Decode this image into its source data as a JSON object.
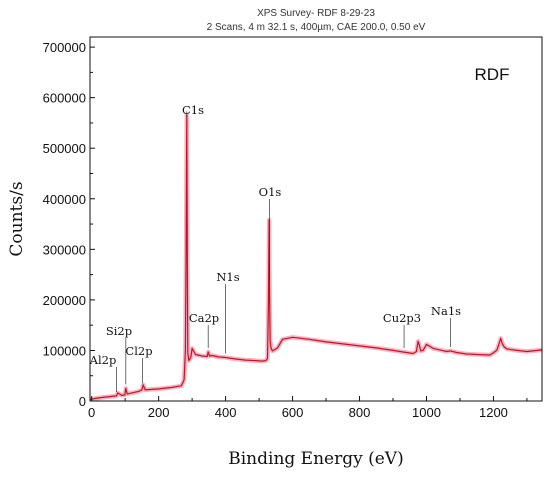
{
  "header": {
    "line1": "XPS Survey- RDF 8-29-23",
    "line2": "2 Scans,  4 m 32.1 s,  400µm,  CAE 200.0,  0.50 eV"
  },
  "chart_data": {
    "type": "line",
    "title": "",
    "sample_label": "RDF",
    "xlabel": "Binding Energy (eV)",
    "ylabel": "Counts/s",
    "xlim": [
      -5,
      1345
    ],
    "ylim": [
      0,
      720000
    ],
    "x_ticks": [
      0,
      200,
      400,
      600,
      800,
      1000,
      1200
    ],
    "y_ticks": [
      0,
      100000,
      200000,
      300000,
      400000,
      500000,
      600000,
      700000
    ],
    "grid": false,
    "legend": "none",
    "line_color": "#c0161b",
    "envelope_color": "#f6b4c8",
    "series": [
      {
        "values_x": [
          -5,
          10,
          30,
          60,
          74,
          78,
          90,
          99,
          102,
          106,
          120,
          140,
          150,
          154,
          160,
          200,
          240,
          268,
          276,
          280,
          282,
          284,
          286,
          287,
          290,
          296,
          300,
          310,
          330,
          345,
          348,
          352,
          360,
          380,
          400,
          430,
          460,
          490,
          510,
          520,
          525,
          528,
          530,
          531,
          533,
          536,
          540,
          555,
          570,
          600,
          650,
          700,
          750,
          800,
          850,
          900,
          930,
          960,
          970,
          975,
          978,
          983,
          990,
          1000,
          1010,
          1020,
          1040,
          1060,
          1072,
          1090,
          1120,
          1150,
          1190,
          1210,
          1218,
          1222,
          1226,
          1232,
          1240,
          1270,
          1300,
          1345
        ],
        "values_y": [
          3000,
          5000,
          7000,
          9000,
          10000,
          16000,
          11000,
          12000,
          25000,
          14000,
          16000,
          19000,
          22000,
          32000,
          22000,
          24000,
          27000,
          30000,
          42000,
          100000,
          300000,
          565000,
          250000,
          95000,
          80000,
          86000,
          104000,
          92000,
          89000,
          88000,
          97000,
          89000,
          90000,
          87000,
          86000,
          83000,
          81000,
          80000,
          79000,
          80000,
          84000,
          200000,
          358000,
          230000,
          120000,
          104000,
          99000,
          105000,
          122000,
          126000,
          122000,
          117000,
          113000,
          109000,
          105000,
          100000,
          97000,
          94000,
          98000,
          118000,
          112000,
          99000,
          100000,
          112000,
          108000,
          104000,
          101000,
          98000,
          99000,
          96000,
          93000,
          92000,
          91000,
          100000,
          116000,
          124000,
          114000,
          107000,
          103000,
          100000,
          98000,
          101000
        ]
      }
    ],
    "annotations": [
      {
        "text": "Al2p",
        "x": 74
      },
      {
        "text": "Si2p",
        "x": 102
      },
      {
        "text": "Cl2p",
        "x": 152
      },
      {
        "text": "C1s",
        "x": 284
      },
      {
        "text": "Ca2p",
        "x": 348
      },
      {
        "text": "N1s",
        "x": 400
      },
      {
        "text": "O1s",
        "x": 531
      },
      {
        "text": "Cu2p3",
        "x": 933
      },
      {
        "text": "Na1s",
        "x": 1072
      }
    ]
  }
}
